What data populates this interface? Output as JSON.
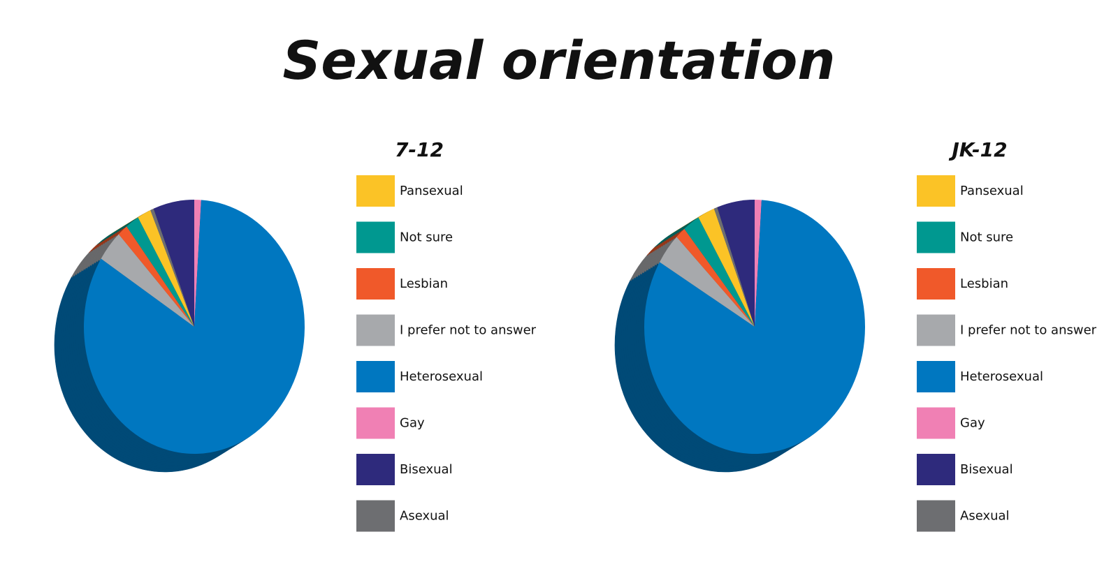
{
  "title": "Sexual orientation",
  "chart_data": [
    {
      "type": "pie",
      "title": "7-12",
      "categories": [
        "Pansexual",
        "Not sure",
        "Lesbian",
        "I prefer not to answer",
        "Heterosexual",
        "Gay",
        "Bisexual",
        "Asexual"
      ],
      "values": [
        2,
        2,
        1.5,
        4,
        83,
        1,
        6,
        0.5
      ],
      "colors": [
        "#fbc326",
        "#009890",
        "#f0592a",
        "#a7a9ac",
        "#0077c0",
        "#f080b4",
        "#2e2a7c",
        "#6d6e71"
      ]
    },
    {
      "type": "pie",
      "title": "JK-12",
      "categories": [
        "Pansexual",
        "Not sure",
        "Lesbian",
        "I prefer not to answer",
        "Heterosexual",
        "Gay",
        "Bisexual",
        "Asexual"
      ],
      "values": [
        2.5,
        2.5,
        1.5,
        4,
        82.5,
        1,
        5.5,
        0.5
      ],
      "colors": [
        "#fbc326",
        "#009890",
        "#f0592a",
        "#a7a9ac",
        "#0077c0",
        "#f080b4",
        "#2e2a7c",
        "#6d6e71"
      ]
    }
  ]
}
